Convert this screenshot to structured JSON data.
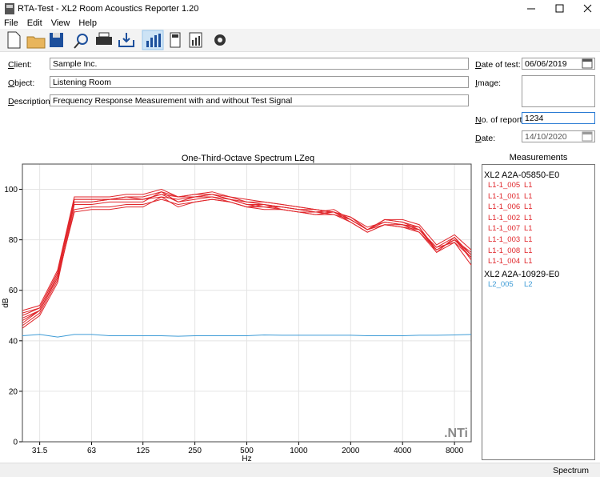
{
  "window": {
    "title": "RTA-Test - XL2 Room Acoustics Reporter 1.20"
  },
  "menu": [
    "File",
    "Edit",
    "View",
    "Help"
  ],
  "form": {
    "client": {
      "label": "Client:",
      "value": "Sample Inc."
    },
    "object": {
      "label": "Object:",
      "value": "Listening Room"
    },
    "description": {
      "label": "Description:",
      "value": "Frequency Response Measurement with and without Test Signal"
    },
    "date_of_test": {
      "label": "Date of test:",
      "value": "06/06/2019"
    },
    "image": {
      "label": "Image:"
    },
    "report_no": {
      "label": "No. of report:",
      "value": "1234"
    },
    "date": {
      "label": "Date:",
      "value": "14/10/2020"
    }
  },
  "chart_data": {
    "type": "line",
    "title": "One-Third-Octave Spectrum LZeq",
    "xlabel": "Hz",
    "ylabel": "dB",
    "watermark": ".NTi",
    "legend_title": "Measurements",
    "xscale": "log",
    "grid": true,
    "x": [
      25,
      31.5,
      40,
      50,
      63,
      80,
      100,
      125,
      160,
      200,
      250,
      315,
      400,
      500,
      630,
      800,
      1000,
      1250,
      1600,
      2000,
      2500,
      3150,
      4000,
      5000,
      6300,
      8000,
      10000
    ],
    "xlim": [
      25,
      10000
    ],
    "xticks": [
      31.5,
      63,
      125,
      250,
      500,
      1000,
      2000,
      4000,
      8000
    ],
    "ylim": [
      0,
      110
    ],
    "yticks": [
      0,
      20,
      40,
      60,
      80,
      100
    ],
    "groups": [
      {
        "title": "XL2 A2A-05850-E0",
        "series": [
          {
            "name": "L1-1_005",
            "channel": "L1",
            "color": "#e0262b",
            "values": [
              45,
              50,
              63,
              94,
              94,
              95,
              95,
              95,
              99,
              95,
              96,
              97,
              95,
              93,
              94,
              92,
              91,
              91,
              92,
              88,
              84,
              88,
              87,
              85,
              75,
              81,
              72
            ]
          },
          {
            "name": "L1-1_001",
            "channel": "L1",
            "color": "#e0262b",
            "values": [
              50,
              53,
              67,
              96,
              96,
              96,
              97,
              97,
              99,
              97,
              98,
              98,
              97,
              95,
              95,
              94,
              93,
              92,
              91,
              89,
              85,
              87,
              86,
              83,
              76,
              80,
              74
            ]
          },
          {
            "name": "L1-1_006",
            "channel": "L1",
            "color": "#e0262b",
            "values": [
              47,
              52,
              65,
              95,
              95,
              96,
              96,
              96,
              97,
              96,
              97,
              97,
              96,
              94,
              94,
              93,
              92,
              91,
              90,
              88,
              84,
              86,
              85,
              84,
              77,
              79,
              73
            ]
          },
          {
            "name": "L1-1_002",
            "channel": "L1",
            "color": "#e0262b",
            "values": [
              52,
              54,
              68,
              97,
              97,
              97,
              98,
              98,
              100,
              97,
              98,
              99,
              97,
              96,
              95,
              94,
              93,
              92,
              91,
              89,
              84,
              88,
              88,
              86,
              78,
              82,
              76
            ]
          },
          {
            "name": "L1-1_007",
            "channel": "L1",
            "color": "#e0262b",
            "values": [
              46,
              51,
              64,
              92,
              93,
              93,
              94,
              94,
              96,
              94,
              95,
              96,
              95,
              93,
              92,
              92,
              91,
              90,
              90,
              87,
              83,
              86,
              85,
              83,
              75,
              79,
              70
            ]
          },
          {
            "name": "L1-1_003",
            "channel": "L1",
            "color": "#e0262b",
            "values": [
              49,
              52,
              66,
              95,
              95,
              96,
              96,
              96,
              98,
              95,
              97,
              98,
              96,
              94,
              93,
              93,
              92,
              91,
              91,
              88,
              84,
              87,
              86,
              85,
              76,
              80,
              73
            ]
          },
          {
            "name": "L1-1_008",
            "channel": "L1",
            "color": "#e0262b",
            "values": [
              51,
              53,
              67,
              96,
              96,
              96,
              97,
              96,
              98,
              97,
              97,
              98,
              96,
              95,
              94,
              93,
              92,
              92,
              91,
              88,
              84,
              88,
              87,
              84,
              77,
              81,
              74
            ]
          },
          {
            "name": "L1-1_004",
            "channel": "L1",
            "color": "#e0262b",
            "values": [
              48,
              52,
              65,
              91,
              92,
              92,
              93,
              93,
              97,
              93,
              95,
              96,
              95,
              93,
              93,
              92,
              91,
              90,
              91,
              87,
              83,
              86,
              86,
              84,
              76,
              80,
              75
            ]
          }
        ]
      },
      {
        "title": "XL2 A2A-10929-E0",
        "series": [
          {
            "name": "L2_005",
            "channel": "L2",
            "color": "#3d9bd6",
            "values": [
              42,
              42.5,
              41.5,
              42.5,
              42.5,
              42,
              42,
              42,
              42,
              41.8,
              42,
              42,
              42,
              42,
              42.3,
              42.2,
              42.2,
              42.2,
              42.2,
              42.2,
              42,
              42,
              42,
              42.2,
              42.2,
              42.3,
              42.5
            ]
          }
        ]
      }
    ]
  },
  "status": "Spectrum"
}
